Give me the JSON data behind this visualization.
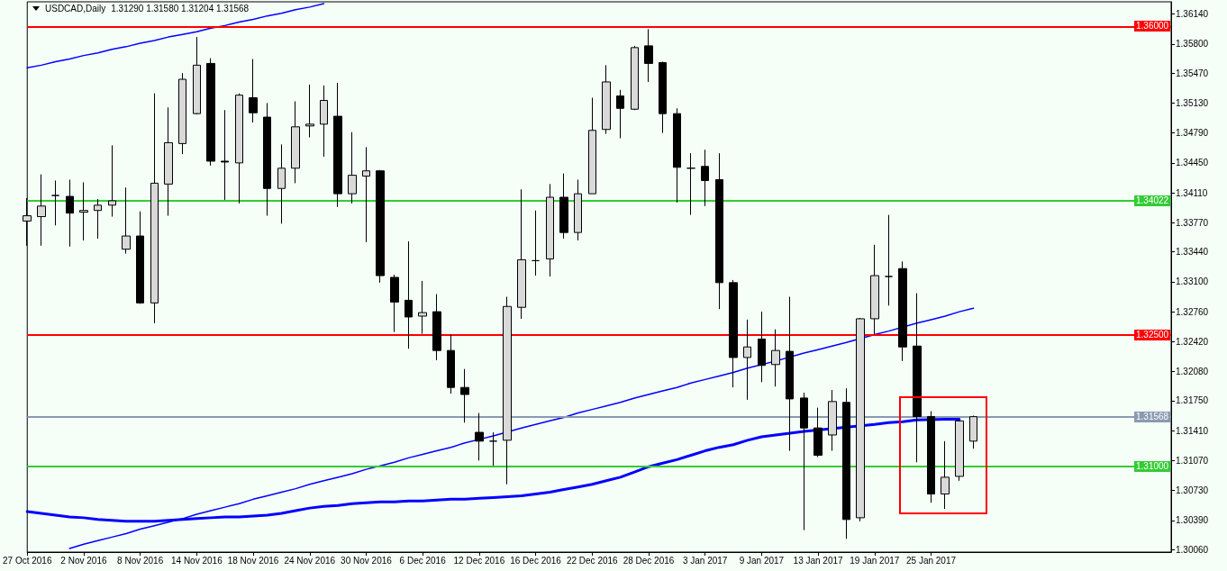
{
  "chart_data": {
    "type": "candlestick",
    "title": "USDCAD,Daily",
    "subtitle": "1.31290 1.31580 1.31204 1.31568",
    "categories": [
      "27 Oct 2016",
      null,
      null,
      null,
      "2 Nov 2016",
      null,
      null,
      null,
      "8 Nov 2016",
      null,
      null,
      null,
      "14 Nov 2016",
      null,
      null,
      null,
      "18 Nov 2016",
      null,
      null,
      null,
      "24 Nov 2016",
      null,
      null,
      null,
      "30 Nov 2016",
      null,
      null,
      null,
      "6 Dec 2016",
      null,
      null,
      null,
      "12 Dec 2016",
      null,
      null,
      null,
      "16 Dec 2016",
      null,
      null,
      null,
      "22 Dec 2016",
      null,
      null,
      null,
      "28 Dec 2016",
      null,
      null,
      null,
      "3 Jan 2017",
      null,
      null,
      null,
      "9 Jan 2017",
      null,
      null,
      null,
      "13 Jan 2017",
      null,
      null,
      null,
      "19 Jan 2017",
      null,
      null,
      null,
      "25 Jan 2017",
      null,
      null,
      null
    ],
    "ohlc": [
      [
        1.3379,
        1.3405,
        1.3351,
        1.3385
      ],
      [
        1.3384,
        1.3432,
        1.3351,
        1.3396
      ],
      [
        1.3408,
        1.3425,
        1.3374,
        1.3408
      ],
      [
        1.3407,
        1.3426,
        1.335,
        1.3388
      ],
      [
        1.3389,
        1.3423,
        1.3357,
        1.3391
      ],
      [
        1.3391,
        1.3404,
        1.3359,
        1.3397
      ],
      [
        1.3397,
        1.3465,
        1.3384,
        1.3402
      ],
      [
        1.3347,
        1.3417,
        1.3342,
        1.3362
      ],
      [
        1.3362,
        1.339,
        1.3285,
        1.3286
      ],
      [
        1.3286,
        1.3524,
        1.3263,
        1.3422
      ],
      [
        1.3421,
        1.3508,
        1.3385,
        1.3468
      ],
      [
        1.3467,
        1.3547,
        1.3455,
        1.354
      ],
      [
        1.3501,
        1.3588,
        1.35,
        1.3556
      ],
      [
        1.3558,
        1.3564,
        1.3442,
        1.3447
      ],
      [
        1.3447,
        1.3505,
        1.3403,
        1.3446
      ],
      [
        1.3445,
        1.3524,
        1.3399,
        1.3522
      ],
      [
        1.3519,
        1.3563,
        1.3491,
        1.3502
      ],
      [
        1.3497,
        1.3513,
        1.3385,
        1.3416
      ],
      [
        1.3416,
        1.3466,
        1.3376,
        1.3439
      ],
      [
        1.3439,
        1.3515,
        1.3422,
        1.3486
      ],
      [
        1.3487,
        1.3534,
        1.3474,
        1.3489
      ],
      [
        1.3489,
        1.3533,
        1.3452,
        1.3516
      ],
      [
        1.3498,
        1.3536,
        1.3395,
        1.341
      ],
      [
        1.341,
        1.348,
        1.3399,
        1.3431
      ],
      [
        1.343,
        1.3463,
        1.3355,
        1.3436
      ],
      [
        1.3436,
        1.3437,
        1.3309,
        1.3317
      ],
      [
        1.3315,
        1.3318,
        1.3253,
        1.3287
      ],
      [
        1.3289,
        1.3356,
        1.3234,
        1.327
      ],
      [
        1.3271,
        1.3311,
        1.3251,
        1.3275
      ],
      [
        1.3276,
        1.3296,
        1.3221,
        1.3232
      ],
      [
        1.3232,
        1.325,
        1.3183,
        1.319
      ],
      [
        1.319,
        1.3211,
        1.315,
        1.3182
      ],
      [
        1.3139,
        1.3161,
        1.3107,
        1.3129
      ],
      [
        1.3129,
        1.3139,
        1.3101,
        1.3129
      ],
      [
        1.313,
        1.3293,
        1.308,
        1.3282
      ],
      [
        1.3281,
        1.3415,
        1.3268,
        1.3335
      ],
      [
        1.3334,
        1.3391,
        1.3317,
        1.3334
      ],
      [
        1.3336,
        1.3421,
        1.3316,
        1.3406
      ],
      [
        1.3406,
        1.3433,
        1.3359,
        1.3366
      ],
      [
        1.3366,
        1.3426,
        1.3357,
        1.341
      ],
      [
        1.341,
        1.3519,
        1.341,
        1.3482
      ],
      [
        1.3483,
        1.3556,
        1.3478,
        1.3537
      ],
      [
        1.3521,
        1.3528,
        1.3473,
        1.3507
      ],
      [
        1.3506,
        1.3578,
        1.3505,
        1.3576
      ],
      [
        1.3578,
        1.3597,
        1.3537,
        1.3558
      ],
      [
        1.3559,
        1.356,
        1.3479,
        1.3501
      ],
      [
        1.3501,
        1.3507,
        1.34,
        1.344
      ],
      [
        1.3439,
        1.3456,
        1.3386,
        1.3439
      ],
      [
        1.3441,
        1.346,
        1.3396,
        1.3425
      ],
      [
        1.3426,
        1.3456,
        1.3279,
        1.3309
      ],
      [
        1.3309,
        1.3312,
        1.319,
        1.3224
      ],
      [
        1.3224,
        1.3267,
        1.3176,
        1.3236
      ],
      [
        1.3245,
        1.3276,
        1.3196,
        1.3215
      ],
      [
        1.3216,
        1.3256,
        1.3191,
        1.3232
      ],
      [
        1.3231,
        1.3293,
        1.3118,
        1.3177
      ],
      [
        1.3178,
        1.3184,
        1.3028,
        1.3144
      ],
      [
        1.3144,
        1.3167,
        1.3111,
        1.3113
      ],
      [
        1.3136,
        1.3187,
        1.3118,
        1.3174
      ],
      [
        1.3173,
        1.3189,
        1.3018,
        1.304
      ],
      [
        1.3042,
        1.3269,
        1.3038,
        1.3268
      ],
      [
        1.3268,
        1.3352,
        1.325,
        1.3317
      ],
      [
        1.3316,
        1.3386,
        1.3283,
        1.3316
      ],
      [
        1.3325,
        1.3333,
        1.322,
        1.3236
      ],
      [
        1.3237,
        1.3297,
        1.3105,
        1.3157
      ],
      [
        1.3157,
        1.3163,
        1.3059,
        1.3069
      ],
      [
        1.3069,
        1.3129,
        1.3052,
        1.3088
      ],
      [
        1.3089,
        1.3153,
        1.3084,
        1.3152
      ],
      [
        1.3129,
        1.3158,
        1.31204,
        1.31568
      ]
    ],
    "colors": [
      "#d9d9d9",
      "#d9d9d9",
      "#000000",
      "#000000",
      "#d9d9d9",
      "#d9d9d9",
      "#d9d9d9",
      "#d9d9d9",
      "#000000",
      "#d9d9d9",
      "#d9d9d9",
      "#d9d9d9",
      "#d9d9d9",
      "#000000",
      "#000000",
      "#d9d9d9",
      "#000000",
      "#000000",
      "#d9d9d9",
      "#d9d9d9",
      "#d9d9d9",
      "#d9d9d9",
      "#000000",
      "#d9d9d9",
      "#d9d9d9",
      "#000000",
      "#000000",
      "#000000",
      "#d9d9d9",
      "#000000",
      "#000000",
      "#000000",
      "#000000",
      "#000000",
      "#d9d9d9",
      "#d9d9d9",
      "#000000",
      "#d9d9d9",
      "#000000",
      "#d9d9d9",
      "#d9d9d9",
      "#d9d9d9",
      "#000000",
      "#d9d9d9",
      "#000000",
      "#000000",
      "#000000",
      "#000000",
      "#000000",
      "#000000",
      "#000000",
      "#d9d9d9",
      "#000000",
      "#d9d9d9",
      "#000000",
      "#000000",
      "#000000",
      "#d9d9d9",
      "#000000",
      "#d9d9d9",
      "#d9d9d9",
      "#000000",
      "#000000",
      "#000000",
      "#000000",
      "#d9d9d9",
      "#d9d9d9",
      "#d9d9d9"
    ],
    "series": [
      {
        "type": "line",
        "color": "#0000ff",
        "values": [
          1.3049,
          1.3047,
          1.3045,
          1.3043,
          1.3042,
          1.304,
          1.3039,
          1.3038,
          1.3038,
          1.3038,
          1.3039,
          1.304,
          1.3041,
          1.3042,
          1.3043,
          1.3043,
          1.3044,
          1.3045,
          1.3047,
          1.305,
          1.3053,
          1.3055,
          1.3056,
          1.3058,
          1.3059,
          1.306,
          1.306,
          1.3061,
          1.3061,
          1.3062,
          1.3063,
          1.3063,
          1.3064,
          1.3065,
          1.3066,
          1.3067,
          1.3069,
          1.3071,
          1.3074,
          1.3077,
          1.308,
          1.3084,
          1.3088,
          1.3094,
          1.31,
          1.3104,
          1.3108,
          1.3113,
          1.3118,
          1.3122,
          1.3125,
          1.313,
          1.3134,
          1.3136,
          1.3138,
          1.314,
          null,
          null,
          null,
          null,
          1.3148,
          1.315,
          1.3151,
          1.3153,
          null,
          1.3154,
          1.3154,
          null
        ]
      },
      {
        "type": "line",
        "color": "#0000ff",
        "values": [
          1.3553,
          1.3556,
          1.356,
          1.3563,
          1.3567,
          1.357,
          1.3574,
          1.3577,
          1.3581,
          1.3584,
          1.3588,
          1.3591,
          1.3594,
          1.3598,
          1.3601,
          1.3605,
          1.3608,
          1.3612,
          1.3615,
          1.3619,
          1.3622,
          1.3626,
          null,
          null,
          null,
          null,
          null,
          null,
          null,
          null,
          null,
          null,
          null,
          null,
          null,
          null,
          null,
          null,
          null,
          null,
          null,
          null,
          null,
          null,
          null,
          null,
          null,
          null,
          null,
          null,
          null,
          null,
          null,
          null,
          null,
          null,
          null,
          null,
          null,
          null,
          null,
          null,
          null,
          null,
          null,
          null,
          null,
          null
        ]
      },
      {
        "type": "line",
        "color": "#0000ff",
        "values": [
          null,
          null,
          null,
          1.3007,
          1.3012,
          1.3016,
          1.302,
          1.3024,
          1.3029,
          1.3033,
          1.3037,
          1.3041,
          1.3046,
          1.305,
          1.3054,
          1.3058,
          1.3063,
          1.3067,
          1.3071,
          1.3075,
          1.308,
          1.3084,
          1.3088,
          1.3092,
          1.3097,
          1.3101,
          1.3105,
          1.311,
          1.3114,
          1.3118,
          1.3122,
          1.3127,
          1.3131,
          1.3135,
          null,
          1.3144,
          1.3148,
          1.3152,
          1.3156,
          1.3161,
          1.3165,
          1.3169,
          1.3173,
          1.3178,
          1.3182,
          1.3186,
          1.319,
          1.3195,
          1.3199,
          1.3203,
          1.3207,
          1.3212,
          null,
          1.322,
          null,
          1.3229,
          1.3233,
          1.3237,
          1.3241,
          null,
          1.325,
          1.3254,
          null,
          1.3263,
          1.3267,
          1.3271,
          1.3276,
          1.328
        ]
      }
    ],
    "ylim": [
      1.3003,
      1.3628
    ],
    "yticks": [
      {
        "value": 1.3614,
        "label": "1.36140"
      },
      {
        "value": 1.358,
        "label": "1.35800"
      },
      {
        "value": 1.3547,
        "label": "1.35470"
      },
      {
        "value": 1.3513,
        "label": "1.35130"
      },
      {
        "value": 1.3479,
        "label": "1.34790"
      },
      {
        "value": 1.3445,
        "label": "1.34450"
      },
      {
        "value": 1.3411,
        "label": "1.34110"
      },
      {
        "value": 1.3377,
        "label": "1.33770"
      },
      {
        "value": 1.3344,
        "label": "1.33440"
      },
      {
        "value": 1.331,
        "label": "1.33100"
      },
      {
        "value": 1.3276,
        "label": "1.32760"
      },
      {
        "value": 1.3242,
        "label": "1.32420"
      },
      {
        "value": 1.3208,
        "label": "1.32080"
      },
      {
        "value": 1.3175,
        "label": "1.31750"
      },
      {
        "value": 1.3141,
        "label": "1.31410"
      },
      {
        "value": 1.3107,
        "label": "1.31070"
      },
      {
        "value": 1.3073,
        "label": "1.30730"
      },
      {
        "value": 1.3039,
        "label": "1.30390"
      },
      {
        "value": 1.3006,
        "label": "1.30060"
      }
    ],
    "ref_lines": [
      {
        "axis": "y",
        "value": 1.36,
        "label": "1.36000",
        "color": "#ff0000"
      },
      {
        "axis": "y",
        "value": 1.34022,
        "label": "1.34022",
        "color": "#33cc33"
      },
      {
        "axis": "y",
        "value": 1.325,
        "label": "1.32500",
        "color": "#ff0000"
      },
      {
        "axis": "y",
        "value": 1.31568,
        "label": "1.31568",
        "color": "#8a9ab0"
      },
      {
        "axis": "y",
        "value": 1.31,
        "label": "1.31000",
        "color": "#33cc33"
      }
    ],
    "grid": false,
    "marker": "none"
  }
}
